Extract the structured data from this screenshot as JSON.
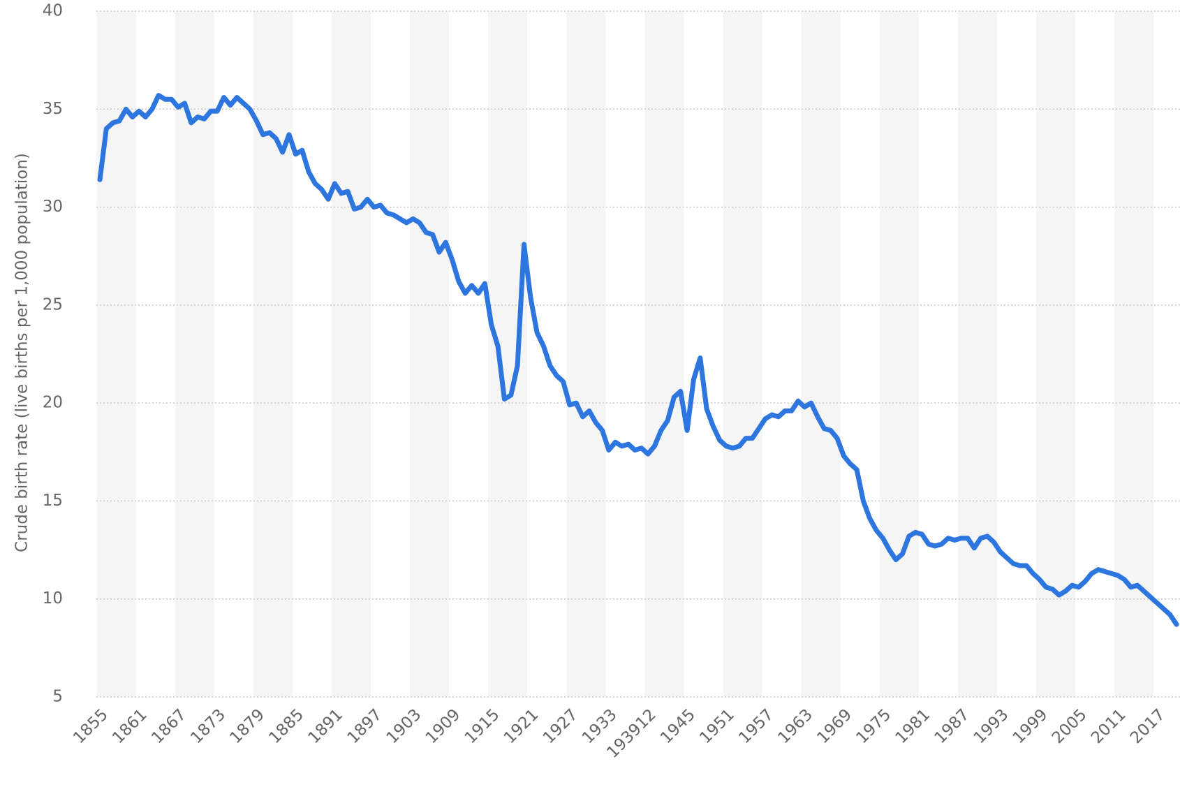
{
  "chart_data": {
    "type": "line",
    "y_label": "Crude birth rate (live births per 1,000 population)",
    "categories": [
      "1855",
      null,
      null,
      null,
      null,
      null,
      "1861",
      null,
      null,
      null,
      null,
      null,
      "1867",
      null,
      null,
      null,
      null,
      null,
      "1873",
      null,
      null,
      null,
      null,
      null,
      "1879",
      null,
      null,
      null,
      null,
      null,
      "1885",
      null,
      null,
      null,
      null,
      null,
      "1891",
      null,
      null,
      null,
      null,
      null,
      "1897",
      null,
      null,
      null,
      null,
      null,
      "1903",
      null,
      null,
      null,
      null,
      null,
      "1909",
      null,
      null,
      null,
      null,
      null,
      "1915",
      null,
      null,
      null,
      null,
      null,
      "1921",
      null,
      null,
      null,
      null,
      null,
      "1927",
      null,
      null,
      null,
      null,
      null,
      "1933",
      null,
      null,
      null,
      null,
      null,
      "193912",
      null,
      null,
      null,
      null,
      null,
      "1945",
      null,
      null,
      null,
      null,
      null,
      "1951",
      null,
      null,
      null,
      null,
      null,
      "1957",
      null,
      null,
      null,
      null,
      null,
      "1963",
      null,
      null,
      null,
      null,
      null,
      "1969",
      null,
      null,
      null,
      null,
      null,
      "1975",
      null,
      null,
      null,
      null,
      null,
      "1981",
      null,
      null,
      null,
      null,
      null,
      "1987",
      null,
      null,
      null,
      null,
      null,
      "1993",
      null,
      null,
      null,
      null,
      null,
      "1999",
      null,
      null,
      null,
      null,
      null,
      "2005",
      null,
      null,
      null,
      null,
      null,
      "2011",
      null,
      null,
      null,
      null,
      null,
      "2017",
      null,
      null,
      null
    ],
    "series": [
      {
        "name": "Crude birth rate",
        "color": "#2e76df",
        "values": [
          31.4,
          34.0,
          34.3,
          34.4,
          35.0,
          34.6,
          34.9,
          34.6,
          35.0,
          35.7,
          35.5,
          35.5,
          35.1,
          35.3,
          34.3,
          34.6,
          34.5,
          34.9,
          34.9,
          35.6,
          35.2,
          35.6,
          35.3,
          35.0,
          34.4,
          33.7,
          33.8,
          33.5,
          32.8,
          33.7,
          32.7,
          32.9,
          31.8,
          31.2,
          30.9,
          30.4,
          31.2,
          30.7,
          30.8,
          29.9,
          30.0,
          30.4,
          30.0,
          30.1,
          29.7,
          29.6,
          29.4,
          29.2,
          29.4,
          29.2,
          28.7,
          28.6,
          27.7,
          28.2,
          27.3,
          26.2,
          25.6,
          26.0,
          25.6,
          26.1,
          24.0,
          22.9,
          20.2,
          20.4,
          21.9,
          28.1,
          25.4,
          23.6,
          22.9,
          21.9,
          21.4,
          21.1,
          19.9,
          20.0,
          19.3,
          19.6,
          19.0,
          18.6,
          17.6,
          18.0,
          17.8,
          17.9,
          17.6,
          17.7,
          17.4,
          17.8,
          18.6,
          19.1,
          20.3,
          20.6,
          18.6,
          21.2,
          22.3,
          19.7,
          18.8,
          18.1,
          17.8,
          17.7,
          17.8,
          18.2,
          18.2,
          18.7,
          19.2,
          19.4,
          19.3,
          19.6,
          19.6,
          20.1,
          19.8,
          20.0,
          19.3,
          18.7,
          18.6,
          18.2,
          17.3,
          16.9,
          16.6,
          15.0,
          14.1,
          13.5,
          13.1,
          12.5,
          12.0,
          12.3,
          13.2,
          13.4,
          13.3,
          12.8,
          12.7,
          12.8,
          13.1,
          13.0,
          13.1,
          13.1,
          12.6,
          13.1,
          13.2,
          12.9,
          12.4,
          12.1,
          11.8,
          11.7,
          11.7,
          11.3,
          11.0,
          10.6,
          10.5,
          10.2,
          10.4,
          10.7,
          10.6,
          10.9,
          11.3,
          11.5,
          11.4,
          11.3,
          11.2,
          11.0,
          10.6,
          10.7,
          10.4,
          10.1,
          9.8,
          9.5,
          9.2,
          8.7
        ]
      }
    ],
    "ylim": [
      5,
      40
    ],
    "yticks": [
      5,
      10,
      15,
      20,
      25,
      30,
      35,
      40
    ],
    "grid": true
  }
}
